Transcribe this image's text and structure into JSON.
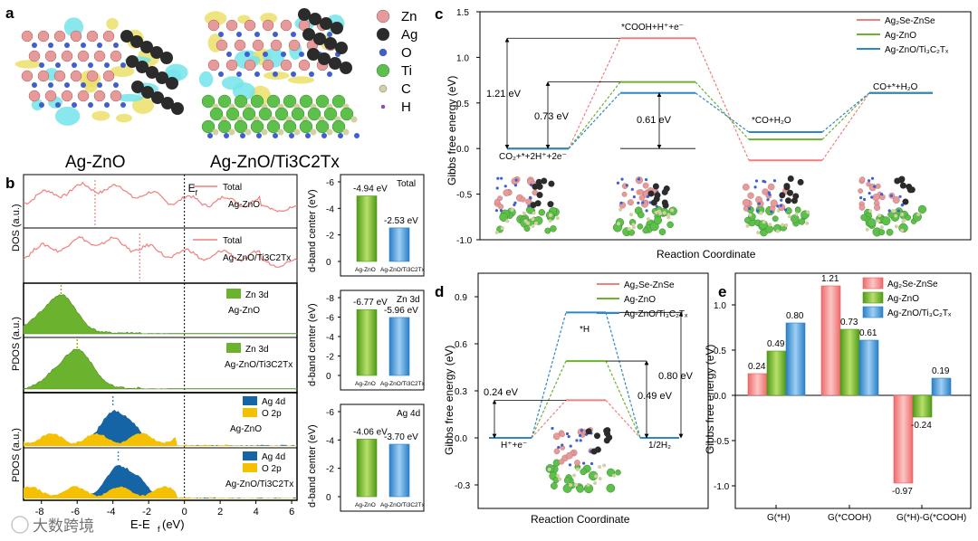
{
  "colors": {
    "red": "#f07f7f",
    "green": "#6bb22e",
    "blue": "#2f86c8",
    "gold": "#f5c000",
    "darkblue": "#1565a6",
    "zn": "#e79a9a",
    "ag": "#2b2b2b",
    "o": "#3f5fd0",
    "ti": "#5cc04b",
    "c": "#d3d0a4",
    "h": "#a23fd6",
    "cyan": "#74e4ea",
    "yellow": "#ece06a"
  },
  "panel_a": {
    "label": "a",
    "left_caption": "Ag-ZnO",
    "right_caption": "Ag-ZnO/Ti3C2Tx",
    "legend": [
      {
        "sym": "Zn",
        "color": "#e79a9a",
        "r": 7
      },
      {
        "sym": "Ag",
        "color": "#2b2b2b",
        "r": 7
      },
      {
        "sym": "O",
        "color": "#3f5fd0",
        "r": 4
      },
      {
        "sym": "Ti",
        "color": "#5cc04b",
        "r": 7
      },
      {
        "sym": "C",
        "color": "#d3d0a4",
        "r": 4
      },
      {
        "sym": "H",
        "color": "#a23fd6",
        "r": 2
      }
    ]
  },
  "panel_b": {
    "label": "b",
    "xlabel": "E-E",
    "xlabel_sub": "f",
    "xlabel_unit": " (eV)",
    "xticks": [
      "-8",
      "-6",
      "-4",
      "-2",
      "0",
      "2",
      "4",
      "6"
    ],
    "ef_label": "E",
    "ef_sub": "f",
    "ylabels": [
      "DOS (a.u.)",
      "PDOS (a.u.)",
      "PDOS (a.u.)"
    ],
    "rows": [
      {
        "legend": [
          "Total"
        ],
        "system": "Ag-ZnO",
        "type": "total",
        "center": -5
      },
      {
        "legend": [
          "Total"
        ],
        "system": "Ag-ZnO/Ti3C2Tx",
        "type": "total",
        "center": -2.5
      },
      {
        "legend": [
          "Zn 3d"
        ],
        "system": "Ag-ZnO",
        "type": "zn",
        "center": -6.9
      },
      {
        "legend": [
          "Zn 3d"
        ],
        "system": "Ag-ZnO/Ti3C2Tx",
        "type": "zn",
        "center": -6.0
      },
      {
        "legend": [
          "Ag 4d",
          "O 2p"
        ],
        "system": "Ag-ZnO",
        "type": "ag",
        "center": -4.0
      },
      {
        "legend": [
          "Ag 4d",
          "O 2p"
        ],
        "system": "Ag-ZnO/Ti3C2Tx",
        "type": "ag",
        "center": -3.7
      }
    ],
    "bars": [
      {
        "title": "Total",
        "values": [
          -4.94,
          -2.53
        ],
        "labels": [
          "-4.94 eV",
          "-2.53 eV"
        ],
        "yticks": [
          "-6",
          "-4",
          "-2",
          "0"
        ],
        "ymin": -6
      },
      {
        "title": "Zn 3d",
        "values": [
          -6.77,
          -5.96
        ],
        "labels": [
          "-6.77 eV",
          "-5.96 eV"
        ],
        "yticks": [
          "-8",
          "-6",
          "-4",
          "-2",
          "0"
        ],
        "ymin": -8
      },
      {
        "title": "Ag 4d",
        "values": [
          -4.06,
          -3.7
        ],
        "labels": [
          "-4.06 eV",
          "-3.70 eV"
        ],
        "yticks": [
          "-6",
          "-4",
          "-2",
          "0"
        ],
        "ymin": -6
      }
    ],
    "bar_categories": [
      "Ag-ZnO",
      "Ag-ZnO/Ti3C2Tx"
    ],
    "bar_ylabel": "d-band center (eV)"
  },
  "chart_data": [
    {
      "panel": "c",
      "type": "line",
      "title": "",
      "xlabel": "Reaction Coordinate",
      "ylabel": "Gibbs free energy (eV)",
      "ylim": [
        -1.0,
        1.5
      ],
      "yticks": [
        "-1.0",
        "-0.5",
        "0.0",
        "0.5",
        "1.0",
        "1.5"
      ],
      "states": [
        "CO2+*+2H++2e-",
        "*COOH+H++e-",
        "*CO+H2O",
        "CO+*+H2O"
      ],
      "state_labels": [
        "CO₂+*+2H⁺+2e⁻",
        "*COOH+H⁺+e⁻",
        "*CO+H₂O",
        "CO+*+H₂O"
      ],
      "series": [
        {
          "name": "Ag2Se-ZnSe",
          "legend": "Ag₂Se-ZnSe",
          "color": "#f07f7f",
          "values": [
            0,
            1.21,
            -0.13,
            0.61
          ]
        },
        {
          "name": "Ag-ZnO",
          "legend": "Ag-ZnO",
          "color": "#6bb22e",
          "values": [
            0,
            0.73,
            0.1,
            0.61
          ]
        },
        {
          "name": "Ag-ZnO/Ti3C2Tx",
          "legend": "Ag-ZnO/Ti₃C₂Tₓ",
          "color": "#2f86c8",
          "values": [
            0,
            0.61,
            0.18,
            0.61
          ]
        }
      ],
      "annotations": [
        "1.21 eV",
        "0.73 eV",
        "0.61 eV"
      ]
    },
    {
      "panel": "d",
      "type": "line",
      "xlabel": "Reaction Coordinate",
      "ylabel": "Gibbs free energy (eV)",
      "ylim": [
        -0.45,
        1.05
      ],
      "yticks": [
        "-0.3",
        "0.0",
        "0.3",
        "0.6",
        "0.9"
      ],
      "state_labels": [
        "H⁺+e⁻",
        "*H",
        "1/2H₂"
      ],
      "series": [
        {
          "name": "Ag2Se-ZnSe",
          "legend": "Ag₂Se-ZnSe",
          "color": "#f07f7f",
          "values": [
            0,
            0.24,
            0
          ]
        },
        {
          "name": "Ag-ZnO",
          "legend": "Ag-ZnO",
          "color": "#6bb22e",
          "values": [
            0,
            0.49,
            0
          ]
        },
        {
          "name": "Ag-ZnO/Ti3C2Tx",
          "legend": "Ag-ZnO/Ti₃C₂Tₓ",
          "color": "#2f86c8",
          "values": [
            0,
            0.8,
            0
          ]
        }
      ],
      "annotations": [
        "0.24 eV",
        "0.49 eV",
        "0.80 eV"
      ]
    },
    {
      "panel": "e",
      "type": "bar",
      "ylabel": "Gibbs free energy (eV)",
      "ylim": [
        -1.25,
        1.35
      ],
      "yticks": [
        "-1.0",
        "-0.5",
        "0.0",
        "0.5",
        "1.0"
      ],
      "categories": [
        "G(*H)",
        "G(*COOH)",
        "G(*H)-G(*COOH)"
      ],
      "series": [
        {
          "name": "Ag2Se-ZnSe",
          "legend": "Ag₂Se-ZnSe",
          "color": "#f07f7f",
          "values": [
            0.24,
            1.21,
            -0.97
          ],
          "labels": [
            "0.24",
            "1.21",
            "-0.97"
          ]
        },
        {
          "name": "Ag-ZnO",
          "legend": "Ag-ZnO",
          "color": "#6bb22e",
          "values": [
            0.49,
            0.73,
            -0.24
          ],
          "labels": [
            "0.49",
            "0.73",
            "-0.24"
          ]
        },
        {
          "name": "Ag-ZnO/Ti3C2Tx",
          "legend": "Ag-ZnO/Ti₃C₂Tₓ",
          "color": "#2f86c8",
          "values": [
            0.8,
            0.61,
            0.19
          ],
          "labels": [
            "0.80",
            "0.61",
            "0.19"
          ]
        }
      ]
    }
  ],
  "watermark": "大数跨境"
}
